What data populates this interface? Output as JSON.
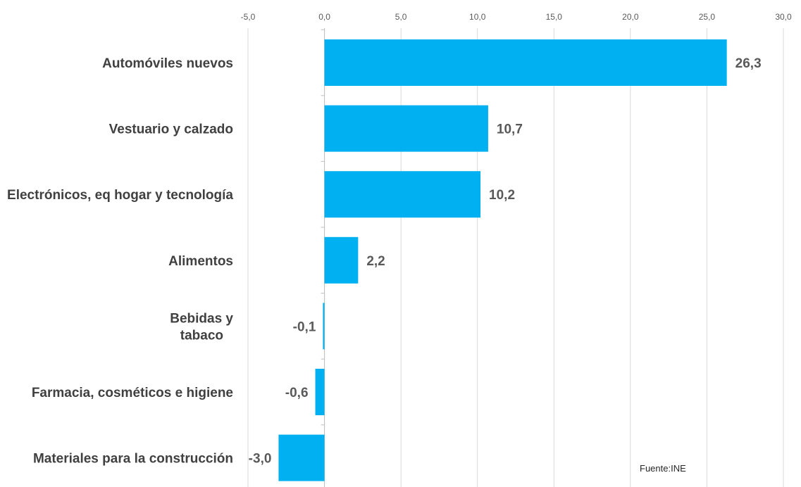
{
  "chart_data": {
    "type": "bar",
    "orientation": "horizontal",
    "categories": [
      "Automóviles nuevos",
      "Vestuario y calzado",
      "Electrónicos, eq hogar y tecnología",
      "Alimentos",
      "Bebidas y tabaco",
      "Farmacia, cosméticos e higiene",
      "Materiales para la construcción"
    ],
    "category_label_lines": [
      [
        "Automóviles nuevos"
      ],
      [
        "Vestuario y calzado"
      ],
      [
        "Electrónicos, eq hogar y tecnología"
      ],
      [
        "Alimentos"
      ],
      [
        "Bebidas y",
        "tabaco"
      ],
      [
        "Farmacia, cosméticos e higiene"
      ],
      [
        "Materiales para la construcción"
      ]
    ],
    "values": [
      26.3,
      10.7,
      10.2,
      2.2,
      -0.1,
      -0.6,
      -3.0
    ],
    "value_labels": [
      "26,3",
      "10,7",
      "10,2",
      "2,2",
      "-0,1",
      "-0,6",
      "-3,0"
    ],
    "xlim": [
      -5,
      30
    ],
    "xticks": [
      -5,
      0,
      5,
      10,
      15,
      20,
      25,
      30
    ],
    "xtick_labels": [
      "-5,0",
      "0,0",
      "5,0",
      "10,0",
      "15,0",
      "20,0",
      "25,0",
      "30,0"
    ],
    "x_axis_position": "top",
    "grid": "vertical",
    "bar_color": "#00b0f0",
    "gridline_color": "#d9d9d9",
    "title": "",
    "xlabel": "",
    "ylabel": "",
    "source_note": "Fuente:INE"
  }
}
